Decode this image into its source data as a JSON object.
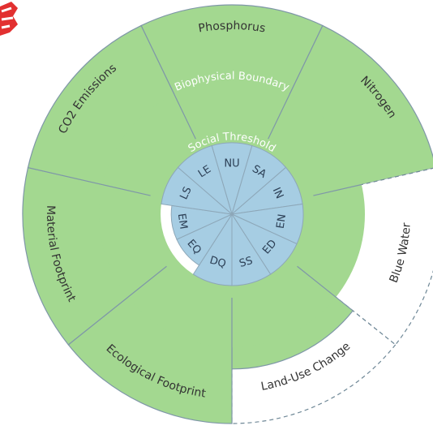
{
  "colors": {
    "outer_fill": "#a3d890",
    "outer_stroke": "#7f97a8",
    "exceeded_outline": "#6f8897",
    "biophysical_ring": "#2e9e4a",
    "social_ring": "#3a83c5",
    "social_fill": "#a6cde3",
    "label_text": "#333333"
  },
  "labels": {
    "biophysical_boundary": "Biophysical Boundary",
    "social_threshold": "Social Threshold"
  },
  "biophysical": [
    {
      "label": "Phosphorus",
      "level": 1.0,
      "exceeded": true
    },
    {
      "label": "Nitrogen",
      "level": 1.0,
      "exceeded": true
    },
    {
      "label": "Blue Water",
      "level": 0.0,
      "exceeded": false
    },
    {
      "label": "Land-Use Change",
      "level": 0.3,
      "exceeded": true
    },
    {
      "label": "Ecological Footprint",
      "level": 1.0,
      "exceeded": true
    },
    {
      "label": "Material Footprint",
      "level": 1.0,
      "exceeded": true
    },
    {
      "label": "CO2 Emissions",
      "level": 1.0,
      "exceeded": true
    }
  ],
  "social": [
    {
      "label": "NU",
      "level": 1.0
    },
    {
      "label": "SA",
      "level": 1.0
    },
    {
      "label": "IN",
      "level": 1.0
    },
    {
      "label": "EN",
      "level": 1.0
    },
    {
      "label": "ED",
      "level": 1.0
    },
    {
      "label": "SS",
      "level": 1.0
    },
    {
      "label": "DQ",
      "level": 1.0
    },
    {
      "label": "EQ",
      "level": 0.85
    },
    {
      "label": "EM",
      "level": 0.85
    },
    {
      "label": "LS",
      "level": 1.0
    },
    {
      "label": "LE",
      "level": 1.0
    }
  ]
}
